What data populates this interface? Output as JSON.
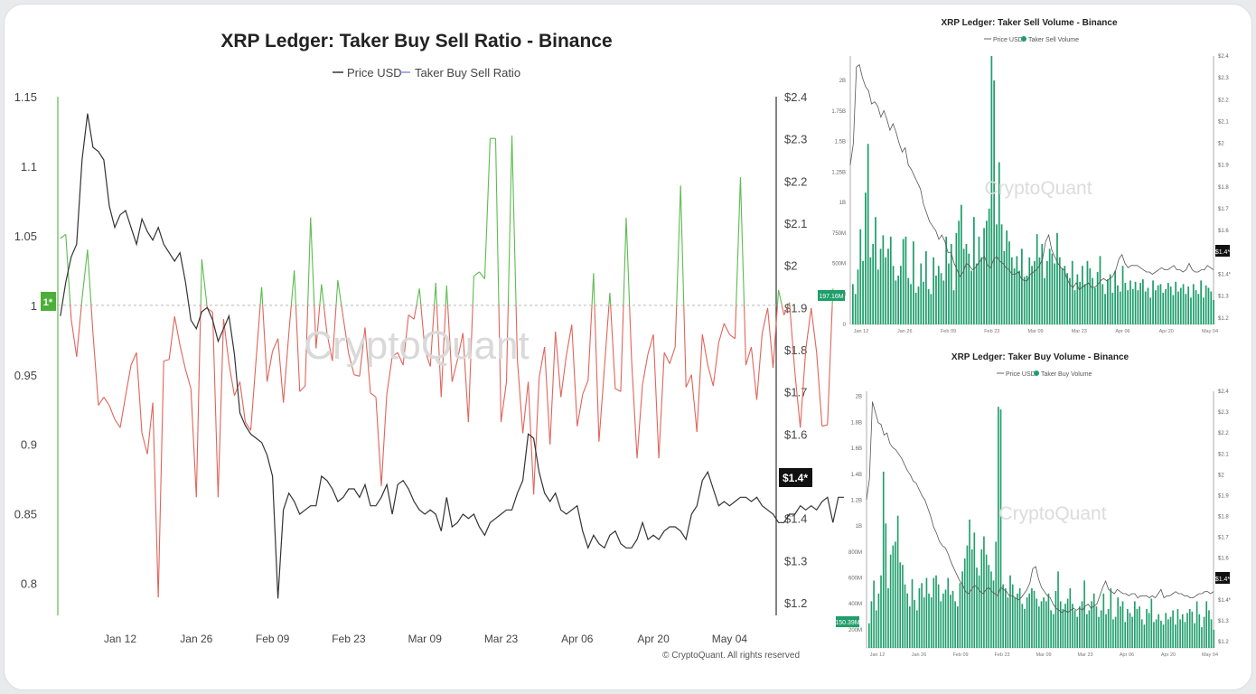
{
  "colors": {
    "price": "#333333",
    "ratio_above": "#5cbc4e",
    "ratio_below": "#e0645a",
    "volume_bar": "#1f9e6b",
    "threshold_fill": "#4caf3a",
    "grid": "#d8d8d8"
  },
  "watermark": "CryptoQuant",
  "chart_data": [
    {
      "type": "line",
      "title": "XRP Ledger: Taker Buy Sell Ratio - Binance",
      "legend": [
        "Price USD",
        "Taker Buy Sell Ratio"
      ],
      "legend_placement": "top-center",
      "x_ticks": [
        "Jan 12",
        "Jan 26",
        "Feb 09",
        "Feb 23",
        "Mar 09",
        "Mar 23",
        "Apr 06",
        "Apr 20",
        "May 04"
      ],
      "y_left": {
        "ticks": [
          "1.15",
          "1.1",
          "1.05",
          "1",
          "0.95",
          "0.9",
          "0.85",
          "0.8"
        ],
        "range": [
          0.777,
          1.15
        ]
      },
      "y_right": {
        "ticks": [
          "$2.4",
          "$2.3",
          "$2.2",
          "$2.1",
          "$2",
          "$1.9",
          "$1.8",
          "$1.7",
          "$1.6",
          "$1.5",
          "$1.4",
          "$1.3",
          "$1.2"
        ],
        "range": [
          1.17,
          2.4
        ]
      },
      "threshold": 1,
      "threshold_label": "1*",
      "price_label": "$1.4*",
      "footer": "© CryptoQuant. All rights reserved",
      "x_dates": [
        "Jan 12",
        "Jan 26",
        "Feb 09",
        "Feb 23",
        "Mar 09",
        "Mar 23",
        "Apr 06",
        "Apr 20",
        "May 04"
      ],
      "series": [
        {
          "name": "Taker Buy Sell Ratio",
          "axis": "left",
          "start": "Jan 01",
          "values": [
            1.048,
            1.051,
            0.99,
            0.963,
            1.005,
            1.04,
            0.98,
            0.928,
            0.934,
            0.928,
            0.918,
            0.912,
            0.935,
            0.957,
            0.966,
            0.908,
            0.893,
            0.93,
            0.79,
            0.96,
            0.961,
            0.992,
            0.971,
            0.954,
            0.94,
            0.862,
            1.033,
            0.998,
            0.995,
            0.862,
            0.99,
            0.958,
            0.935,
            0.945,
            0.916,
            0.91,
            0.962,
            1.013,
            0.945,
            0.967,
            0.976,
            0.93,
            0.98,
            1.025,
            0.938,
            0.942,
            1.063,
            0.969,
            1.015,
            0.98,
            0.96,
            1.018,
            0.991,
            0.965,
            0.95,
            0.949,
            0.984,
            0.937,
            0.934,
            0.87,
            0.936,
            0.963,
            0.966,
            0.957,
            0.993,
            0.99,
            1.012,
            0.968,
            0.956,
            1.016,
            0.934,
            1.014,
            0.945,
            0.961,
            0.98,
            0.916,
            1.021,
            1.024,
            1.019,
            1.12,
            1.12,
            0.916,
            0.945,
            1.122,
            0.961,
            0.908,
            0.945,
            0.864,
            0.948,
            0.97,
            0.9,
            0.981,
            0.934,
            0.964,
            0.986,
            0.913,
            0.936,
            0.946,
            1.023,
            0.902,
            0.955,
            1.009,
            0.94,
            0.938,
            1.063,
            0.96,
            0.89,
            0.943,
            0.965,
            0.979,
            0.89,
            0.966,
            0.958,
            0.97,
            1.086,
            0.941,
            0.95,
            0.909,
            0.979,
            0.957,
            0.942,
            0.973,
            0.987,
            0.979,
            0.976,
            1.092,
            0.957,
            0.97,
            0.932,
            0.98,
            0.998,
            0.955,
            1.011,
            0.993,
            1.002,
            0.952,
            0.912,
            0.968,
            0.998,
            0.966,
            0.913,
            0.914,
            1.012
          ]
        },
        {
          "name": "Price USD",
          "axis": "right",
          "start": "Jan 01",
          "values": [
            1.88,
            1.96,
            2.02,
            2.05,
            2.25,
            2.36,
            2.28,
            2.27,
            2.25,
            2.14,
            2.09,
            2.12,
            2.13,
            2.09,
            2.05,
            2.11,
            2.08,
            2.06,
            2.09,
            2.05,
            2.03,
            2.01,
            2.03,
            1.96,
            1.87,
            1.85,
            1.89,
            1.9,
            1.87,
            1.82,
            1.85,
            1.88,
            1.79,
            1.65,
            1.62,
            1.6,
            1.59,
            1.58,
            1.55,
            1.5,
            1.21,
            1.42,
            1.46,
            1.44,
            1.41,
            1.42,
            1.43,
            1.43,
            1.5,
            1.49,
            1.47,
            1.44,
            1.45,
            1.47,
            1.47,
            1.45,
            1.48,
            1.43,
            1.43,
            1.45,
            1.48,
            1.41,
            1.48,
            1.49,
            1.47,
            1.44,
            1.42,
            1.41,
            1.42,
            1.41,
            1.37,
            1.45,
            1.38,
            1.39,
            1.41,
            1.4,
            1.41,
            1.38,
            1.36,
            1.39,
            1.4,
            1.41,
            1.42,
            1.42,
            1.46,
            1.49,
            1.6,
            1.59,
            1.51,
            1.46,
            1.44,
            1.46,
            1.42,
            1.41,
            1.42,
            1.43,
            1.37,
            1.33,
            1.36,
            1.34,
            1.33,
            1.36,
            1.37,
            1.34,
            1.33,
            1.33,
            1.35,
            1.39,
            1.35,
            1.36,
            1.35,
            1.37,
            1.38,
            1.38,
            1.37,
            1.35,
            1.41,
            1.43,
            1.49,
            1.51,
            1.47,
            1.43,
            1.44,
            1.43,
            1.44,
            1.45,
            1.45,
            1.44,
            1.45,
            1.43,
            1.42,
            1.41,
            1.39,
            1.39,
            1.41,
            1.41,
            1.43,
            1.42,
            1.43,
            1.42,
            1.44,
            1.45,
            1.39,
            1.45,
            1.45
          ]
        }
      ]
    },
    {
      "type": "bar",
      "title": "XRP Ledger: Taker Sell Volume - Binance",
      "legend": [
        "Price USD",
        "Taker Sell Volume"
      ],
      "legend_placement": "top-center",
      "x_ticks": [
        "Jan 12",
        "Jan 26",
        "Feb 09",
        "Feb 23",
        "Mar 09",
        "Mar 23",
        "Apr 06",
        "Apr 20",
        "May 04"
      ],
      "y_left": {
        "ticks": [
          "2B",
          "1.75B",
          "1.5B",
          "1.25B",
          "1B",
          "750M",
          "500M",
          "250M",
          "0"
        ],
        "range": [
          0,
          2.2
        ]
      },
      "y_right": {
        "ticks": [
          "$2.4",
          "$2.3",
          "$2.2",
          "$2.1",
          "$2",
          "$1.9",
          "$1.8",
          "$1.7",
          "$1.6",
          "$1.5",
          "$1.4*",
          "$1.3",
          "$1.2"
        ],
        "range": [
          1.17,
          2.4
        ]
      },
      "volume_label": "197.16M",
      "price_label": "$1.4*",
      "series": [
        {
          "name": "Taker Sell Volume",
          "unit": "B",
          "values": [
            0.33,
            0.25,
            0.45,
            0.78,
            0.52,
            1.08,
            1.48,
            0.55,
            0.66,
            0.88,
            0.45,
            0.62,
            0.73,
            0.55,
            0.62,
            0.72,
            0.48,
            0.36,
            0.4,
            0.48,
            0.7,
            0.72,
            0.38,
            0.33,
            0.68,
            0.26,
            0.31,
            0.5,
            0.35,
            0.6,
            0.29,
            0.25,
            0.55,
            0.4,
            0.48,
            0.42,
            0.36,
            0.72,
            0.5,
            0.66,
            0.28,
            0.75,
            0.85,
            0.98,
            0.62,
            0.66,
            0.58,
            0.44,
            0.88,
            0.5,
            0.72,
            0.55,
            0.79,
            0.85,
            0.95,
            2.2,
            2.0,
            0.82,
            1.33,
            0.82,
            0.6,
            0.77,
            0.68,
            0.55,
            0.46,
            0.56,
            0.44,
            0.62,
            0.39,
            0.4,
            0.55,
            0.48,
            0.52,
            0.74,
            0.55,
            0.66,
            0.38,
            0.52,
            0.62,
            0.58,
            0.5,
            0.75,
            0.55,
            0.46,
            0.48,
            0.42,
            0.38,
            0.52,
            0.28,
            0.41,
            0.35,
            0.48,
            0.33,
            0.52,
            0.46,
            0.38,
            0.3,
            0.43,
            0.56,
            0.33,
            0.25,
            0.37,
            0.41,
            0.26,
            0.44,
            0.32,
            0.27,
            0.48,
            0.34,
            0.28,
            0.36,
            0.29,
            0.35,
            0.28,
            0.34,
            0.37,
            0.27,
            0.3,
            0.22,
            0.36,
            0.28,
            0.32,
            0.33,
            0.26,
            0.29,
            0.34,
            0.31,
            0.24,
            0.35,
            0.27,
            0.3,
            0.33,
            0.25,
            0.31,
            0.22,
            0.33,
            0.28,
            0.25,
            0.36,
            0.22,
            0.32,
            0.3,
            0.27,
            0.2
          ]
        },
        {
          "name": "Price USD",
          "axis": "right",
          "values": [
            1.9,
            2.0,
            2.35,
            2.36,
            2.3,
            2.26,
            2.24,
            2.18,
            2.19,
            2.17,
            2.12,
            2.15,
            2.11,
            2.06,
            2.09,
            2.05,
            2.0,
            1.96,
            1.98,
            1.9,
            1.88,
            1.85,
            1.82,
            1.79,
            1.72,
            1.68,
            1.64,
            1.62,
            1.6,
            1.56,
            1.58,
            1.55,
            1.5,
            1.5,
            1.45,
            1.42,
            1.39,
            1.41,
            1.45,
            1.44,
            1.42,
            1.43,
            1.45,
            1.47,
            1.48,
            1.44,
            1.43,
            1.47,
            1.48,
            1.46,
            1.45,
            1.43,
            1.42,
            1.4,
            1.4,
            1.41,
            1.38,
            1.37,
            1.37,
            1.4,
            1.41,
            1.42,
            1.44,
            1.47,
            1.55,
            1.58,
            1.51,
            1.48,
            1.45,
            1.43,
            1.42,
            1.38,
            1.35,
            1.34,
            1.36,
            1.33,
            1.34,
            1.35,
            1.36,
            1.34,
            1.34,
            1.35,
            1.37,
            1.38,
            1.37,
            1.38,
            1.39,
            1.42,
            1.47,
            1.49,
            1.45,
            1.43,
            1.44,
            1.44,
            1.44,
            1.43,
            1.42,
            1.41,
            1.41,
            1.4,
            1.41,
            1.42,
            1.43,
            1.42,
            1.42,
            1.43,
            1.44,
            1.42,
            1.42,
            1.41,
            1.42,
            1.45,
            1.42,
            1.41,
            1.41,
            1.42,
            1.42,
            1.44,
            1.43,
            1.42
          ]
        }
      ]
    },
    {
      "type": "bar",
      "title": "XRP Ledger: Taker Buy Volume - Binance",
      "legend": [
        "Price USD",
        "Taker Buy Volume"
      ],
      "legend_placement": "top-center",
      "x_ticks": [
        "Jan 12",
        "Jan 26",
        "Feb 09",
        "Feb 23",
        "Mar 09",
        "Mar 23",
        "Apr 06",
        "Apr 20",
        "May 04"
      ],
      "y_left": {
        "ticks": [
          "2B",
          "1.8B",
          "1.6B",
          "1.4B",
          "1.2B",
          "1B",
          "800M",
          "600M",
          "400M",
          "200M"
        ],
        "range": [
          0.06,
          2.04
        ]
      },
      "y_right": {
        "ticks": [
          "$2.4",
          "$2.3",
          "$2.2",
          "$2.1",
          "$2",
          "$1.9",
          "$1.8",
          "$1.7",
          "$1.6",
          "$1.5",
          "$1.4*",
          "$1.3",
          "$1.2"
        ],
        "range": [
          1.17,
          2.4
        ]
      },
      "volume_label": "150.39M",
      "price_label": "$1.4*",
      "series": [
        {
          "name": "Taker Buy Volume",
          "unit": "B",
          "values": [
            0.25,
            0.42,
            0.58,
            0.35,
            0.48,
            0.62,
            1.42,
            1.02,
            0.52,
            0.78,
            0.85,
            0.88,
            1.08,
            0.72,
            0.7,
            0.55,
            0.48,
            0.38,
            0.59,
            0.43,
            0.35,
            0.52,
            0.56,
            0.45,
            0.6,
            0.48,
            0.45,
            0.6,
            0.62,
            0.55,
            0.42,
            0.48,
            0.51,
            0.6,
            0.47,
            0.5,
            0.42,
            0.38,
            0.56,
            0.65,
            0.75,
            0.85,
            1.05,
            0.82,
            0.95,
            0.68,
            0.62,
            0.82,
            0.92,
            0.78,
            0.7,
            0.65,
            0.58,
            0.88,
            1.92,
            1.9,
            0.55,
            0.52,
            0.45,
            0.62,
            0.55,
            0.45,
            0.48,
            0.52,
            0.4,
            0.36,
            0.45,
            0.48,
            0.52,
            0.5,
            0.44,
            0.38,
            0.42,
            0.45,
            0.42,
            0.48,
            0.35,
            0.32,
            0.5,
            0.65,
            0.42,
            0.36,
            0.4,
            0.44,
            0.52,
            0.4,
            0.35,
            0.3,
            0.38,
            0.42,
            0.58,
            0.32,
            0.35,
            0.42,
            0.48,
            0.38,
            0.3,
            0.35,
            0.48,
            0.32,
            0.36,
            0.52,
            0.28,
            0.3,
            0.45,
            0.38,
            0.42,
            0.26,
            0.36,
            0.33,
            0.3,
            0.42,
            0.36,
            0.38,
            0.28,
            0.24,
            0.36,
            0.33,
            0.44,
            0.26,
            0.28,
            0.32,
            0.27,
            0.24,
            0.33,
            0.28,
            0.3,
            0.35,
            0.24,
            0.36,
            0.28,
            0.32,
            0.26,
            0.33,
            0.36,
            0.34,
            0.25,
            0.42,
            0.32,
            0.22,
            0.3,
            0.42,
            0.35,
            0.28,
            0.2
          ]
        },
        {
          "name": "Price USD",
          "axis": "right",
          "values": [
            1.88,
            1.98,
            2.35,
            2.3,
            2.25,
            2.24,
            2.19,
            2.2,
            2.15,
            2.13,
            2.12,
            2.1,
            2.08,
            2.05,
            2.02,
            2.0,
            1.97,
            1.96,
            1.93,
            1.9,
            1.88,
            1.84,
            1.8,
            1.75,
            1.72,
            1.68,
            1.66,
            1.65,
            1.62,
            1.58,
            1.55,
            1.52,
            1.49,
            1.47,
            1.44,
            1.43,
            1.45,
            1.47,
            1.46,
            1.44,
            1.43,
            1.45,
            1.46,
            1.44,
            1.43,
            1.42,
            1.46,
            1.45,
            1.44,
            1.42,
            1.42,
            1.41,
            1.4,
            1.41,
            1.43,
            1.45,
            1.48,
            1.55,
            1.56,
            1.5,
            1.46,
            1.44,
            1.42,
            1.41,
            1.38,
            1.36,
            1.35,
            1.34,
            1.35,
            1.34,
            1.35,
            1.36,
            1.35,
            1.36,
            1.35,
            1.37,
            1.38,
            1.36,
            1.37,
            1.38,
            1.42,
            1.46,
            1.49,
            1.45,
            1.44,
            1.43,
            1.45,
            1.44,
            1.43,
            1.43,
            1.42,
            1.43,
            1.43,
            1.41,
            1.42,
            1.42,
            1.42,
            1.41,
            1.42,
            1.41,
            1.43,
            1.45,
            1.41,
            1.42,
            1.42,
            1.43,
            1.44,
            1.43,
            1.43,
            1.42,
            1.42,
            1.41,
            1.41,
            1.42,
            1.43,
            1.43,
            1.44,
            1.44,
            1.43,
            1.44
          ]
        }
      ]
    }
  ]
}
